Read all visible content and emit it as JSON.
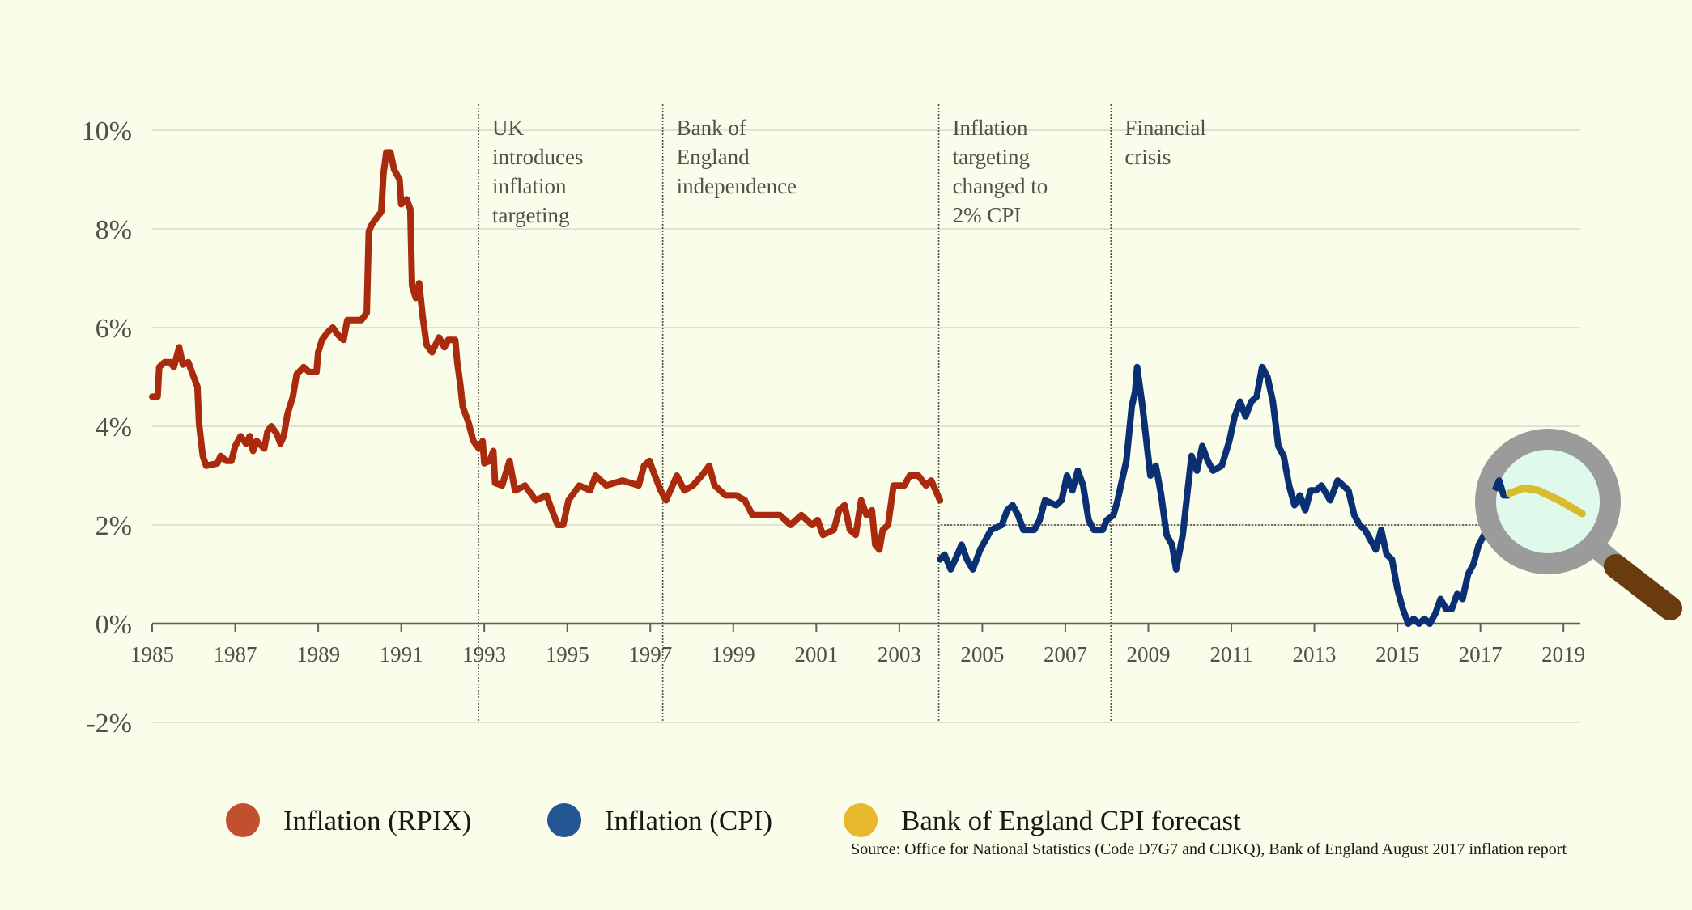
{
  "chart_data": {
    "type": "line",
    "title": "",
    "xlabel": "",
    "ylabel": "",
    "xlim": [
      1985,
      2019.6
    ],
    "ylim": [
      -2,
      10
    ],
    "yticks": [
      -2,
      0,
      2,
      4,
      6,
      8,
      10
    ],
    "ytick_labels": [
      "-2%",
      "0%",
      "2%",
      "4%",
      "6%",
      "8%",
      "10%"
    ],
    "xticks": [
      1985,
      1987,
      1989,
      1991,
      1993,
      1995,
      1997,
      1999,
      2001,
      2003,
      2005,
      2007,
      2009,
      2011,
      2013,
      2015,
      2017,
      2019
    ],
    "xtick_labels": [
      "1985",
      "1987",
      "1989",
      "1991",
      "1993",
      "1995",
      "1997",
      "1999",
      "2001",
      "2003",
      "2005",
      "2007",
      "2009",
      "2011",
      "2013",
      "2015",
      "2017",
      "2019"
    ],
    "grid": "horizontal",
    "legend_position": "bottom",
    "target_line": {
      "value": 2,
      "from": 2004.0
    },
    "annotations": [
      {
        "x": 1992.86,
        "lines": [
          "UK",
          "introduces",
          "inflation",
          "targeting"
        ]
      },
      {
        "x": 1997.3,
        "lines": [
          "Bank of",
          "England",
          "independence"
        ]
      },
      {
        "x": 2003.95,
        "lines": [
          "Inflation",
          "targeting",
          "changed to",
          "2% CPI"
        ]
      },
      {
        "x": 2008.1,
        "lines": [
          "Financial",
          "crisis"
        ]
      }
    ],
    "series": [
      {
        "name": "Inflation (RPIX)",
        "color": "#a92a0c",
        "legend_color": "#c0502e",
        "points": [
          [
            1985.0,
            4.6
          ],
          [
            1985.13,
            4.6
          ],
          [
            1985.17,
            5.2
          ],
          [
            1985.3,
            5.3
          ],
          [
            1985.43,
            5.3
          ],
          [
            1985.52,
            5.2
          ],
          [
            1985.65,
            5.6
          ],
          [
            1985.74,
            5.25
          ],
          [
            1985.87,
            5.3
          ],
          [
            1986.0,
            5.0
          ],
          [
            1986.09,
            4.8
          ],
          [
            1986.13,
            4.05
          ],
          [
            1986.22,
            3.4
          ],
          [
            1986.3,
            3.2
          ],
          [
            1986.57,
            3.25
          ],
          [
            1986.65,
            3.4
          ],
          [
            1986.78,
            3.3
          ],
          [
            1986.91,
            3.3
          ],
          [
            1987.0,
            3.6
          ],
          [
            1987.13,
            3.8
          ],
          [
            1987.26,
            3.65
          ],
          [
            1987.35,
            3.8
          ],
          [
            1987.43,
            3.5
          ],
          [
            1987.52,
            3.7
          ],
          [
            1987.7,
            3.55
          ],
          [
            1987.78,
            3.9
          ],
          [
            1987.87,
            4.0
          ],
          [
            1988.0,
            3.85
          ],
          [
            1988.09,
            3.65
          ],
          [
            1988.17,
            3.8
          ],
          [
            1988.26,
            4.25
          ],
          [
            1988.39,
            4.6
          ],
          [
            1988.48,
            5.05
          ],
          [
            1988.65,
            5.2
          ],
          [
            1988.78,
            5.1
          ],
          [
            1988.96,
            5.1
          ],
          [
            1989.0,
            5.5
          ],
          [
            1989.09,
            5.75
          ],
          [
            1989.22,
            5.9
          ],
          [
            1989.35,
            6.0
          ],
          [
            1989.48,
            5.85
          ],
          [
            1989.61,
            5.75
          ],
          [
            1989.7,
            6.15
          ],
          [
            1990.04,
            6.15
          ],
          [
            1990.17,
            6.3
          ],
          [
            1990.22,
            7.95
          ],
          [
            1990.3,
            8.1
          ],
          [
            1990.52,
            8.35
          ],
          [
            1990.57,
            9.1
          ],
          [
            1990.64,
            9.55
          ],
          [
            1990.74,
            9.55
          ],
          [
            1990.83,
            9.2
          ],
          [
            1990.96,
            9.0
          ],
          [
            1991.0,
            8.5
          ],
          [
            1991.13,
            8.6
          ],
          [
            1991.22,
            8.4
          ],
          [
            1991.26,
            6.85
          ],
          [
            1991.35,
            6.6
          ],
          [
            1991.43,
            6.9
          ],
          [
            1991.52,
            6.2
          ],
          [
            1991.61,
            5.65
          ],
          [
            1991.74,
            5.5
          ],
          [
            1991.91,
            5.8
          ],
          [
            1992.04,
            5.6
          ],
          [
            1992.13,
            5.75
          ],
          [
            1992.3,
            5.75
          ],
          [
            1992.35,
            5.3
          ],
          [
            1992.43,
            4.8
          ],
          [
            1992.48,
            4.4
          ],
          [
            1992.61,
            4.1
          ],
          [
            1992.74,
            3.7
          ],
          [
            1992.87,
            3.55
          ],
          [
            1992.96,
            3.7
          ],
          [
            1993.0,
            3.25
          ],
          [
            1993.13,
            3.3
          ],
          [
            1993.22,
            3.5
          ],
          [
            1993.26,
            2.85
          ],
          [
            1993.43,
            2.8
          ],
          [
            1993.61,
            3.3
          ],
          [
            1993.74,
            2.7
          ],
          [
            1993.87,
            2.75
          ],
          [
            1993.98,
            2.8
          ],
          [
            1994.24,
            2.5
          ],
          [
            1994.5,
            2.6
          ],
          [
            1994.63,
            2.3
          ],
          [
            1994.77,
            2.0
          ],
          [
            1994.9,
            2.0
          ],
          [
            1995.03,
            2.5
          ],
          [
            1995.29,
            2.8
          ],
          [
            1995.55,
            2.7
          ],
          [
            1995.68,
            3.0
          ],
          [
            1995.94,
            2.8
          ],
          [
            1996.33,
            2.9
          ],
          [
            1996.72,
            2.8
          ],
          [
            1996.85,
            3.2
          ],
          [
            1996.98,
            3.3
          ],
          [
            1997.11,
            3.0
          ],
          [
            1997.25,
            2.7
          ],
          [
            1997.38,
            2.5
          ],
          [
            1997.64,
            3.0
          ],
          [
            1997.82,
            2.7
          ],
          [
            1998.03,
            2.8
          ],
          [
            1998.24,
            3.0
          ],
          [
            1998.42,
            3.2
          ],
          [
            1998.55,
            2.8
          ],
          [
            1998.81,
            2.6
          ],
          [
            1999.07,
            2.6
          ],
          [
            1999.28,
            2.5
          ],
          [
            1999.46,
            2.2
          ],
          [
            2000.12,
            2.2
          ],
          [
            2000.38,
            2.0
          ],
          [
            2000.64,
            2.2
          ],
          [
            2000.9,
            2.0
          ],
          [
            2001.03,
            2.1
          ],
          [
            2001.16,
            1.8
          ],
          [
            2001.42,
            1.9
          ],
          [
            2001.55,
            2.3
          ],
          [
            2001.68,
            2.4
          ],
          [
            2001.81,
            1.9
          ],
          [
            2001.95,
            1.8
          ],
          [
            2002.08,
            2.5
          ],
          [
            2002.21,
            2.2
          ],
          [
            2002.34,
            2.3
          ],
          [
            2002.42,
            1.6
          ],
          [
            2002.52,
            1.5
          ],
          [
            2002.6,
            1.9
          ],
          [
            2002.73,
            2.0
          ],
          [
            2002.86,
            2.8
          ],
          [
            2003.12,
            2.8
          ],
          [
            2003.25,
            3.0
          ],
          [
            2003.46,
            3.0
          ],
          [
            2003.64,
            2.8
          ],
          [
            2003.77,
            2.9
          ],
          [
            2003.98,
            2.5
          ]
        ]
      },
      {
        "name": "Inflation (CPI)",
        "color": "#0a2f73",
        "legend_color": "#245694",
        "points": [
          [
            2003.98,
            1.3
          ],
          [
            2004.09,
            1.4
          ],
          [
            2004.24,
            1.1
          ],
          [
            2004.4,
            1.4
          ],
          [
            2004.5,
            1.6
          ],
          [
            2004.63,
            1.3
          ],
          [
            2004.77,
            1.1
          ],
          [
            2004.95,
            1.5
          ],
          [
            2005.08,
            1.7
          ],
          [
            2005.21,
            1.9
          ],
          [
            2005.47,
            2.0
          ],
          [
            2005.6,
            2.3
          ],
          [
            2005.73,
            2.4
          ],
          [
            2005.86,
            2.2
          ],
          [
            2005.99,
            1.9
          ],
          [
            2006.25,
            1.9
          ],
          [
            2006.38,
            2.1
          ],
          [
            2006.51,
            2.5
          ],
          [
            2006.78,
            2.4
          ],
          [
            2006.91,
            2.5
          ],
          [
            2007.04,
            3.0
          ],
          [
            2007.17,
            2.7
          ],
          [
            2007.3,
            3.1
          ],
          [
            2007.43,
            2.8
          ],
          [
            2007.56,
            2.1
          ],
          [
            2007.69,
            1.9
          ],
          [
            2007.9,
            1.9
          ],
          [
            2008.0,
            2.1
          ],
          [
            2008.16,
            2.2
          ],
          [
            2008.26,
            2.5
          ],
          [
            2008.47,
            3.3
          ],
          [
            2008.6,
            4.4
          ],
          [
            2008.68,
            4.7
          ],
          [
            2008.73,
            5.2
          ],
          [
            2008.86,
            4.4
          ],
          [
            2008.94,
            3.8
          ],
          [
            2009.05,
            3.0
          ],
          [
            2009.18,
            3.2
          ],
          [
            2009.31,
            2.6
          ],
          [
            2009.44,
            1.8
          ],
          [
            2009.57,
            1.6
          ],
          [
            2009.67,
            1.1
          ],
          [
            2009.83,
            1.8
          ],
          [
            2009.96,
            2.8
          ],
          [
            2010.04,
            3.4
          ],
          [
            2010.17,
            3.1
          ],
          [
            2010.3,
            3.6
          ],
          [
            2010.43,
            3.3
          ],
          [
            2010.56,
            3.1
          ],
          [
            2010.77,
            3.2
          ],
          [
            2010.95,
            3.7
          ],
          [
            2011.08,
            4.2
          ],
          [
            2011.21,
            4.5
          ],
          [
            2011.34,
            4.2
          ],
          [
            2011.48,
            4.5
          ],
          [
            2011.61,
            4.6
          ],
          [
            2011.74,
            5.2
          ],
          [
            2011.87,
            5.0
          ],
          [
            2012.0,
            4.5
          ],
          [
            2012.13,
            3.6
          ],
          [
            2012.26,
            3.4
          ],
          [
            2012.39,
            2.8
          ],
          [
            2012.52,
            2.4
          ],
          [
            2012.65,
            2.6
          ],
          [
            2012.78,
            2.3
          ],
          [
            2012.91,
            2.7
          ],
          [
            2013.04,
            2.7
          ],
          [
            2013.17,
            2.8
          ],
          [
            2013.38,
            2.5
          ],
          [
            2013.56,
            2.9
          ],
          [
            2013.82,
            2.7
          ],
          [
            2013.96,
            2.2
          ],
          [
            2014.09,
            2.0
          ],
          [
            2014.22,
            1.9
          ],
          [
            2014.35,
            1.7
          ],
          [
            2014.48,
            1.5
          ],
          [
            2014.61,
            1.9
          ],
          [
            2014.74,
            1.4
          ],
          [
            2014.87,
            1.3
          ],
          [
            2015.0,
            0.7
          ],
          [
            2015.13,
            0.3
          ],
          [
            2015.26,
            0.0
          ],
          [
            2015.39,
            0.1
          ],
          [
            2015.52,
            0.0
          ],
          [
            2015.65,
            0.1
          ],
          [
            2015.78,
            0.0
          ],
          [
            2015.91,
            0.2
          ],
          [
            2016.04,
            0.5
          ],
          [
            2016.17,
            0.3
          ],
          [
            2016.31,
            0.3
          ],
          [
            2016.44,
            0.6
          ],
          [
            2016.57,
            0.5
          ],
          [
            2016.7,
            1.0
          ],
          [
            2016.83,
            1.2
          ],
          [
            2016.96,
            1.6
          ],
          [
            2017.09,
            1.8
          ],
          [
            2017.22,
            2.3
          ],
          [
            2017.35,
            2.7
          ],
          [
            2017.45,
            2.9
          ],
          [
            2017.56,
            2.6
          ],
          [
            2017.7,
            2.6
          ]
        ]
      },
      {
        "name": "Bank of England CPI forecast",
        "color": "#d9bc2e",
        "legend_color": "#e8b92c",
        "points": [
          [
            2017.7,
            2.64
          ],
          [
            2018.05,
            2.75
          ],
          [
            2018.4,
            2.7
          ],
          [
            2018.9,
            2.5
          ],
          [
            2019.45,
            2.23
          ]
        ]
      }
    ],
    "source": "Source: Office for National Statistics (Code D7G7 and CDKQ), Bank of England August 2017 inflation report"
  },
  "icons": {
    "magnifier": "magnifying-glass-icon"
  },
  "colors": {
    "background": "#f9fde9",
    "grid": "#d6dccb",
    "axis": "#5c6458",
    "lens": "#dffaeb",
    "lens_rim": "#9b9b9b",
    "handle": "#6b3b10"
  }
}
